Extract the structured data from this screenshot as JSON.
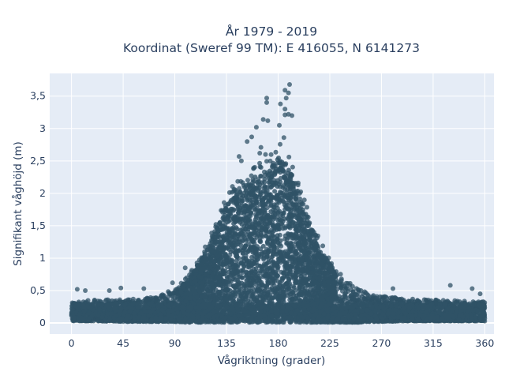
{
  "chart_data": {
    "type": "scatter",
    "title": "År 1979 - 2019",
    "subtitle": "Koordinat (Sweref 99 TM): E 416055, N 6141273",
    "xlabel": "Vågriktning (grader)",
    "ylabel": "Signifikant våghöjd (m)",
    "xlim": [
      -19,
      368
    ],
    "ylim": [
      -0.17,
      3.85
    ],
    "xticks": [
      0,
      45,
      90,
      135,
      180,
      225,
      270,
      315,
      360
    ],
    "xtick_labels": [
      "0",
      "45",
      "90",
      "135",
      "180",
      "225",
      "270",
      "315",
      "360"
    ],
    "yticks": [
      0,
      0.5,
      1,
      1.5,
      2,
      2.5,
      3,
      3.5
    ],
    "ytick_labels": [
      "0",
      "0,5",
      "1",
      "1,5",
      "2",
      "2,5",
      "3",
      "3,5"
    ],
    "grid": true,
    "legend": "none",
    "marker_color": "#2f5266",
    "plot_background": "#e5ecf6",
    "envelope": {
      "x": [
        0,
        20,
        45,
        70,
        90,
        100,
        110,
        120,
        130,
        135,
        140,
        150,
        160,
        170,
        180,
        190,
        200,
        210,
        220,
        230,
        240,
        250,
        260,
        270,
        290,
        315,
        340,
        360
      ],
      "y_min": [
        0.03,
        0.03,
        0.02,
        0.02,
        0.02,
        0.01,
        0.01,
        0.01,
        0.01,
        0.01,
        0.01,
        0.01,
        0.01,
        0.01,
        0.01,
        0.01,
        0.01,
        0.01,
        0.01,
        0.01,
        0.01,
        0.01,
        0.02,
        0.02,
        0.03,
        0.03,
        0.03,
        0.03
      ],
      "y_max": [
        0.33,
        0.36,
        0.36,
        0.4,
        0.52,
        0.7,
        0.95,
        1.3,
        1.75,
        1.95,
        2.15,
        2.3,
        2.45,
        2.55,
        2.8,
        2.6,
        2.05,
        1.55,
        1.15,
        0.85,
        0.65,
        0.52,
        0.45,
        0.42,
        0.38,
        0.36,
        0.34,
        0.33
      ]
    },
    "outliers": {
      "x": [
        190,
        186,
        187,
        170,
        189,
        182,
        186,
        170,
        167,
        171,
        186,
        161,
        153,
        146,
        157,
        181,
        164,
        185,
        189,
        192,
        165,
        169,
        148,
        5,
        12,
        33,
        43,
        63,
        99,
        88,
        280,
        330,
        349,
        356
      ],
      "y": [
        3.68,
        3.59,
        3.47,
        3.47,
        3.55,
        3.38,
        3.3,
        3.4,
        3.14,
        3.12,
        3.21,
        3.02,
        2.8,
        2.57,
        2.87,
        3.05,
        2.62,
        2.86,
        3.22,
        3.2,
        2.71,
        2.6,
        2.5,
        0.52,
        0.5,
        0.5,
        0.54,
        0.53,
        0.85,
        0.62,
        0.53,
        0.58,
        0.53,
        0.45
      ]
    }
  }
}
